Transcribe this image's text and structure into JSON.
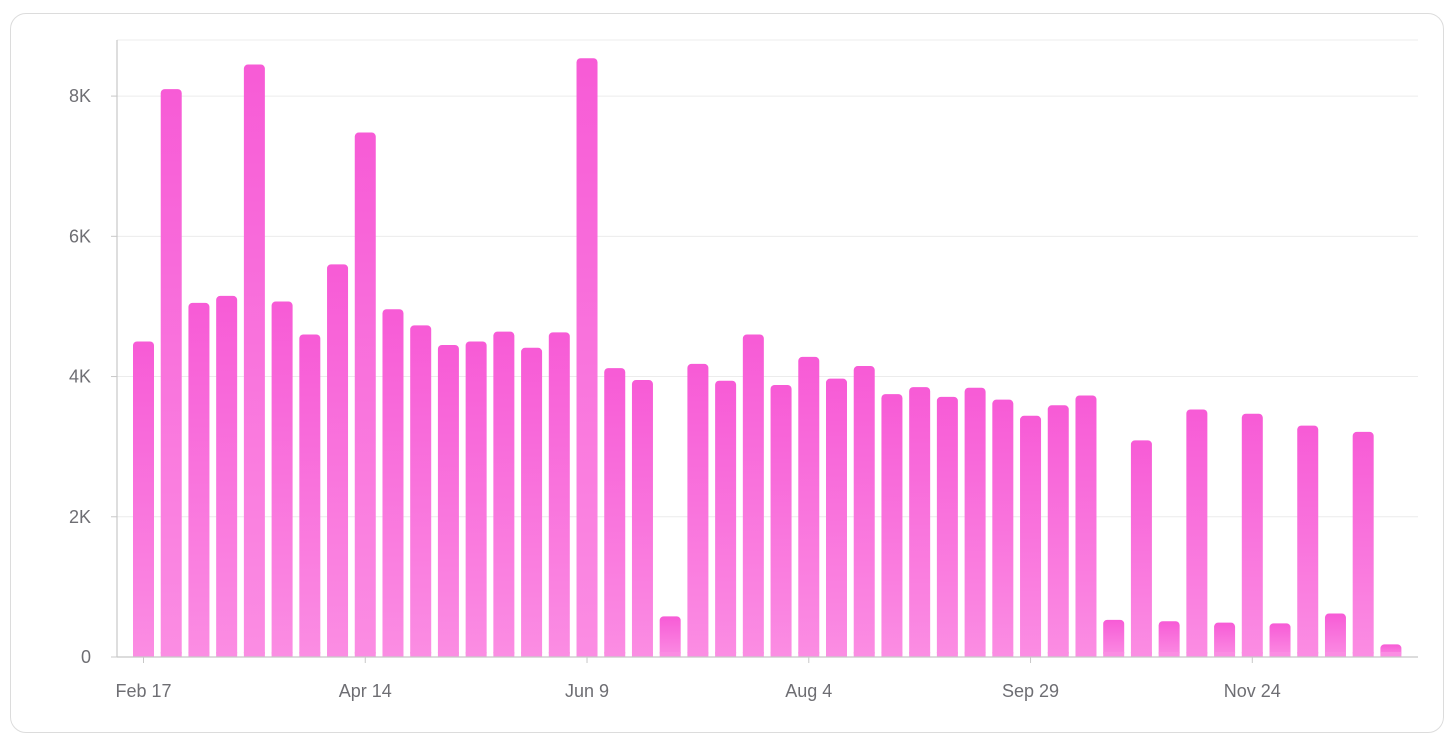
{
  "colors": {
    "bar_top": "#f75bd6",
    "bar_bottom": "#fb8de3",
    "grid": "#ececec",
    "axis": "#c8c8c8",
    "tick_text": "#6e6e73"
  },
  "chart_data": {
    "type": "bar",
    "title": "",
    "xlabel": "",
    "ylabel": "",
    "ylim": [
      0,
      8800
    ],
    "grid": true,
    "yticks": [
      0,
      2000,
      4000,
      6000,
      8000
    ],
    "ytick_labels": [
      "0",
      "2K",
      "4K",
      "6K",
      "8K"
    ],
    "xtick_labels": [
      "Feb 17",
      "Apr 14",
      "Jun 9",
      "Aug 4",
      "Sep 29",
      "Nov 24"
    ],
    "xtick_indices": [
      0,
      8,
      16,
      24,
      32,
      40
    ],
    "values": [
      4500,
      8100,
      5050,
      5150,
      8450,
      5070,
      4600,
      5600,
      7480,
      4960,
      4730,
      4450,
      4500,
      4640,
      4410,
      4630,
      8540,
      4120,
      3950,
      580,
      4180,
      3940,
      4600,
      3880,
      4280,
      3970,
      4150,
      3750,
      3850,
      3710,
      3840,
      3670,
      3440,
      3590,
      3730,
      530,
      3090,
      510,
      3530,
      490,
      3470,
      480,
      3300,
      620,
      3210,
      180
    ]
  }
}
